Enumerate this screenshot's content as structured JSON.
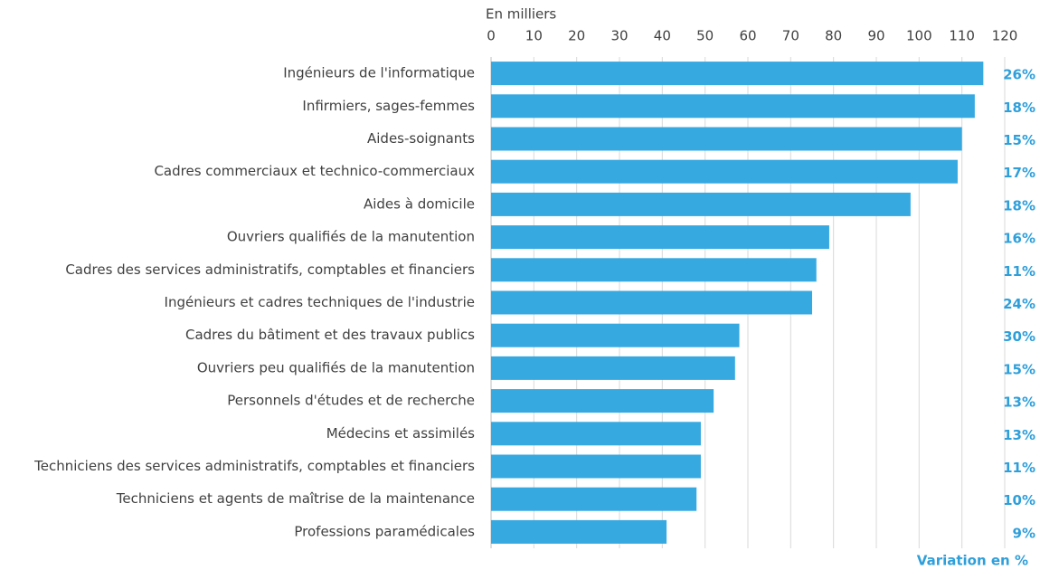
{
  "chart_data": {
    "type": "bar",
    "orientation": "horizontal",
    "x_label": "En milliers",
    "categories": [
      "Ingénieurs de l'informatique",
      "Infirmiers, sages-femmes",
      "Aides-soignants",
      "Cadres commerciaux et technico-commerciaux",
      "Aides à domicile",
      "Ouvriers qualifiés de la manutention",
      "Cadres des services administratifs, comptables et financiers",
      "Ingénieurs et cadres techniques de l'industrie",
      "Cadres du bâtiment et des travaux publics",
      "Ouvriers peu qualifiés de la manutention",
      "Personnels d'études et de recherche",
      "Médecins et assimilés",
      "Techniciens des services administratifs, comptables et financiers",
      "Techniciens et agents de maîtrise de la maintenance",
      "Professions paramédicales"
    ],
    "values": [
      115,
      113,
      110,
      109,
      98,
      79,
      76,
      75,
      58,
      57,
      52,
      49,
      49,
      48,
      41
    ],
    "color": "#36a9e1",
    "xlim": [
      0,
      120
    ],
    "xticks": [
      0,
      10,
      20,
      30,
      40,
      50,
      60,
      70,
      80,
      90,
      100,
      110,
      120
    ],
    "grid": true,
    "variation_label": "Variation en %",
    "variations": [
      26,
      18,
      15,
      17,
      18,
      16,
      11,
      24,
      30,
      15,
      13,
      13,
      11,
      10,
      9
    ],
    "variation_value_labels": [
      "26%",
      "18%",
      "15%",
      "17%",
      "18%",
      "16%",
      "11%",
      "24%",
      "30%",
      "15%",
      "13%",
      "13%",
      "11%",
      "10%",
      "9%"
    ],
    "variation_color": "#2f9fda"
  }
}
